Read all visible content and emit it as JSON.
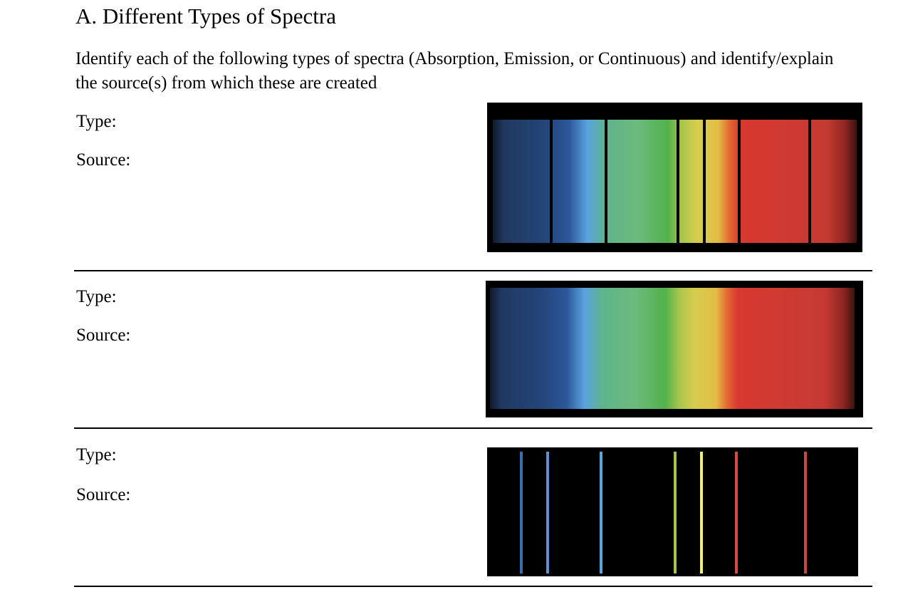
{
  "heading": "A. Different Types of Spectra",
  "instructions": "Identify each of the following types of spectra (Absorption, Emission, or Continuous) and identify/explain the source(s) from which these are created",
  "items": [
    {
      "type_label": "Type:",
      "source_label": "Source:"
    },
    {
      "type_label": "Type:",
      "source_label": "Source:"
    },
    {
      "type_label": "Type:",
      "source_label": "Source:"
    }
  ],
  "emission_line_colors": [
    "#3f6bb0",
    "#5d93d4",
    "#5aa6e0",
    "#a8c24e",
    "#f3f07a",
    "#d84a45",
    "#c94842"
  ]
}
